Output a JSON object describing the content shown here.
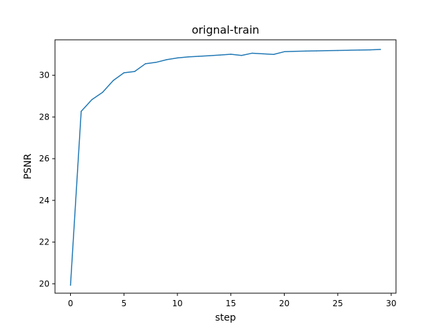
{
  "chart_data": {
    "type": "line",
    "title": "orignal-train",
    "xlabel": "step",
    "ylabel": "PSNR",
    "xlim": [
      -1.45,
      30.45
    ],
    "ylim": [
      19.55,
      31.7
    ],
    "xticks": [
      0,
      5,
      10,
      15,
      20,
      25,
      30
    ],
    "yticks": [
      20,
      22,
      24,
      26,
      28,
      30
    ],
    "grid": false,
    "series": [
      {
        "color": "#1f77b4",
        "x": [
          0,
          1,
          2,
          3,
          4,
          5,
          6,
          7,
          8,
          9,
          10,
          11,
          12,
          13,
          14,
          15,
          16,
          17,
          18,
          19,
          20,
          21,
          22,
          23,
          24,
          25,
          26,
          27,
          28,
          29
        ],
        "y": [
          19.93,
          28.27,
          28.83,
          29.18,
          29.75,
          30.12,
          30.18,
          30.55,
          30.62,
          30.75,
          30.83,
          30.88,
          30.91,
          30.94,
          30.97,
          31.01,
          30.95,
          31.06,
          31.03,
          31.0,
          31.13,
          31.15,
          31.16,
          31.17,
          31.18,
          31.19,
          31.2,
          31.21,
          31.22,
          31.24
        ]
      }
    ]
  }
}
